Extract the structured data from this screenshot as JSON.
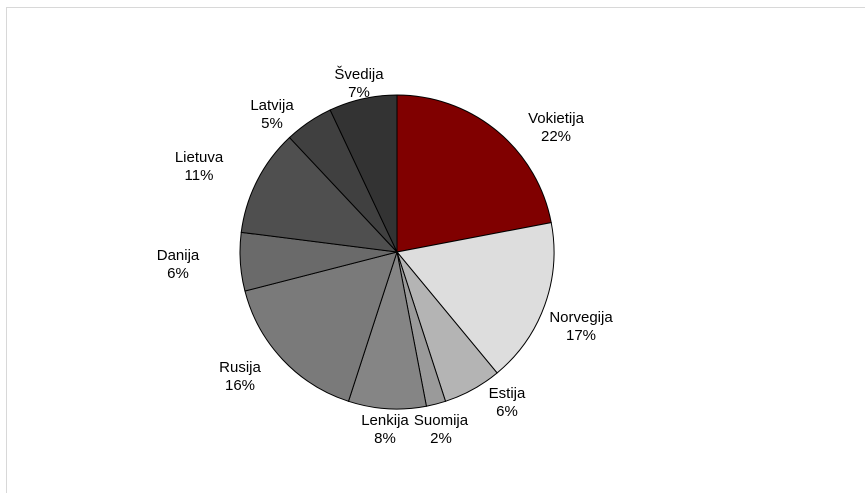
{
  "chart_data": {
    "type": "pie",
    "start": "top",
    "direction": "clockwise",
    "slices": [
      {
        "label": "Vokietija",
        "value": 22,
        "pct": "22%",
        "color": "#800000"
      },
      {
        "label": "Norvegija",
        "value": 17,
        "pct": "17%",
        "color": "#dddddd"
      },
      {
        "label": "Estija",
        "value": 6,
        "pct": "6%",
        "color": "#b4b4b4"
      },
      {
        "label": "Suomija",
        "value": 2,
        "pct": "2%",
        "color": "#9a9a9a"
      },
      {
        "label": "Lenkija",
        "value": 8,
        "pct": "8%",
        "color": "#858585"
      },
      {
        "label": "Rusija",
        "value": 16,
        "pct": "16%",
        "color": "#7a7a7a"
      },
      {
        "label": "Danija",
        "value": 6,
        "pct": "6%",
        "color": "#6a6a6a"
      },
      {
        "label": "Lietuva",
        "value": 11,
        "pct": "11%",
        "color": "#4f4f4f"
      },
      {
        "label": "Latvija",
        "value": 5,
        "pct": "5%",
        "color": "#404040"
      },
      {
        "label": "Švedija",
        "value": 7,
        "pct": "7%",
        "color": "#333333"
      }
    ]
  }
}
